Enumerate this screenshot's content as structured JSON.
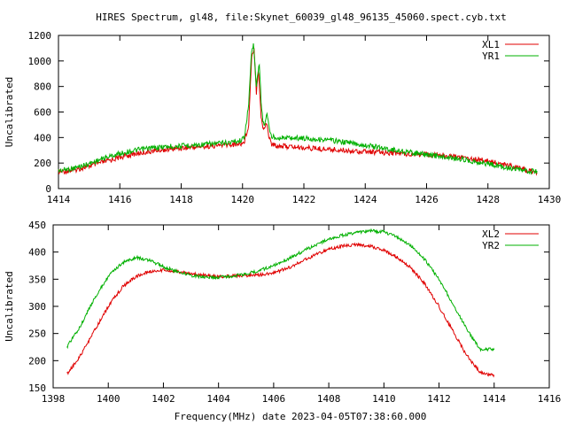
{
  "title": "HIRES Spectrum, gl48, file:Skynet_60039_gl48_96135_45060.spect.cyb.txt",
  "xlabel": "Frequency(MHz) date 2023-04-05T07:38:60.000",
  "colors": {
    "red": "#e00000",
    "green": "#00b000"
  },
  "chart_data": [
    {
      "type": "line",
      "ylabel": "Uncalibrated",
      "xlim": [
        1414,
        1430
      ],
      "ylim": [
        0,
        1200
      ],
      "xticks": [
        1414,
        1416,
        1418,
        1420,
        1422,
        1424,
        1426,
        1428,
        1430
      ],
      "yticks": [
        0,
        200,
        400,
        600,
        800,
        1000,
        1200
      ],
      "legend_position": "top-right",
      "grid": false,
      "series": [
        {
          "name": "XL1",
          "color": "#e00000",
          "points": [
            [
              1414.0,
              130
            ],
            [
              1414.5,
              145
            ],
            [
              1415.0,
              175
            ],
            [
              1415.5,
              210
            ],
            [
              1416.0,
              245
            ],
            [
              1416.5,
              272
            ],
            [
              1417.0,
              292
            ],
            [
              1417.5,
              307
            ],
            [
              1418.0,
              318
            ],
            [
              1418.5,
              327
            ],
            [
              1419.0,
              335
            ],
            [
              1419.5,
              342
            ],
            [
              1419.9,
              350
            ],
            [
              1420.05,
              360
            ],
            [
              1420.2,
              500
            ],
            [
              1420.3,
              1050
            ],
            [
              1420.38,
              1100
            ],
            [
              1420.45,
              750
            ],
            [
              1420.52,
              950
            ],
            [
              1420.6,
              580
            ],
            [
              1420.68,
              450
            ],
            [
              1420.78,
              520
            ],
            [
              1420.85,
              420
            ],
            [
              1420.95,
              345
            ],
            [
              1421.2,
              335
            ],
            [
              1422.0,
              320
            ],
            [
              1423.0,
              305
            ],
            [
              1424.0,
              290
            ],
            [
              1425.0,
              278
            ],
            [
              1426.0,
              265
            ],
            [
              1426.5,
              262
            ],
            [
              1427.0,
              250
            ],
            [
              1427.5,
              235
            ],
            [
              1428.0,
              215
            ],
            [
              1428.5,
              190
            ],
            [
              1429.0,
              160
            ],
            [
              1429.3,
              140
            ],
            [
              1429.6,
              130
            ]
          ]
        },
        {
          "name": "YR1",
          "color": "#00b000",
          "points": [
            [
              1414.0,
              140
            ],
            [
              1414.5,
              160
            ],
            [
              1415.0,
              195
            ],
            [
              1415.5,
              240
            ],
            [
              1416.0,
              275
            ],
            [
              1416.5,
              300
            ],
            [
              1417.0,
              318
            ],
            [
              1417.5,
              328
            ],
            [
              1418.0,
              335
            ],
            [
              1418.5,
              342
            ],
            [
              1419.0,
              350
            ],
            [
              1419.5,
              360
            ],
            [
              1419.9,
              375
            ],
            [
              1420.05,
              395
            ],
            [
              1420.2,
              650
            ],
            [
              1420.3,
              1100
            ],
            [
              1420.36,
              1130
            ],
            [
              1420.45,
              800
            ],
            [
              1420.55,
              980
            ],
            [
              1420.62,
              620
            ],
            [
              1420.7,
              480
            ],
            [
              1420.8,
              600
            ],
            [
              1420.88,
              450
            ],
            [
              1420.95,
              405
            ],
            [
              1421.2,
              400
            ],
            [
              1422.0,
              395
            ],
            [
              1423.0,
              375
            ],
            [
              1424.0,
              340
            ],
            [
              1425.0,
              300
            ],
            [
              1426.0,
              265
            ],
            [
              1426.5,
              250
            ],
            [
              1427.0,
              235
            ],
            [
              1427.5,
              215
            ],
            [
              1428.0,
              195
            ],
            [
              1428.5,
              170
            ],
            [
              1429.0,
              145
            ],
            [
              1429.3,
              135
            ],
            [
              1429.6,
              135
            ]
          ]
        }
      ]
    },
    {
      "type": "line",
      "ylabel": "Uncalibrated",
      "xlim": [
        1398,
        1416
      ],
      "ylim": [
        150,
        450
      ],
      "xticks": [
        1398,
        1400,
        1402,
        1404,
        1406,
        1408,
        1410,
        1412,
        1414,
        1416
      ],
      "yticks": [
        150,
        200,
        250,
        300,
        350,
        400,
        450
      ],
      "legend_position": "top-right",
      "grid": false,
      "series": [
        {
          "name": "XL2",
          "color": "#e00000",
          "points": [
            [
              1398.5,
              175
            ],
            [
              1399.0,
              210
            ],
            [
              1399.5,
              255
            ],
            [
              1400.0,
              300
            ],
            [
              1400.5,
              335
            ],
            [
              1401.0,
              355
            ],
            [
              1401.5,
              364
            ],
            [
              1402.0,
              367
            ],
            [
              1402.5,
              364
            ],
            [
              1403.0,
              360
            ],
            [
              1403.5,
              357
            ],
            [
              1404.0,
              355
            ],
            [
              1404.5,
              356
            ],
            [
              1405.0,
              357
            ],
            [
              1405.5,
              358
            ],
            [
              1406.0,
              362
            ],
            [
              1406.5,
              370
            ],
            [
              1407.0,
              382
            ],
            [
              1407.5,
              395
            ],
            [
              1408.0,
              405
            ],
            [
              1408.5,
              411
            ],
            [
              1409.0,
              413
            ],
            [
              1409.5,
              411
            ],
            [
              1410.0,
              404
            ],
            [
              1410.5,
              390
            ],
            [
              1411.0,
              370
            ],
            [
              1411.5,
              340
            ],
            [
              1412.0,
              300
            ],
            [
              1412.5,
              255
            ],
            [
              1413.0,
              210
            ],
            [
              1413.5,
              178
            ],
            [
              1414.0,
              172
            ]
          ]
        },
        {
          "name": "YR2",
          "color": "#00b000",
          "points": [
            [
              1398.5,
              225
            ],
            [
              1399.0,
              265
            ],
            [
              1399.5,
              315
            ],
            [
              1400.0,
              355
            ],
            [
              1400.5,
              380
            ],
            [
              1401.0,
              390
            ],
            [
              1401.5,
              385
            ],
            [
              1402.0,
              373
            ],
            [
              1402.5,
              364
            ],
            [
              1403.0,
              357
            ],
            [
              1403.5,
              354
            ],
            [
              1404.0,
              353
            ],
            [
              1404.5,
              356
            ],
            [
              1405.0,
              360
            ],
            [
              1405.5,
              366
            ],
            [
              1406.0,
              375
            ],
            [
              1406.5,
              387
            ],
            [
              1407.0,
              400
            ],
            [
              1407.5,
              413
            ],
            [
              1408.0,
              423
            ],
            [
              1408.5,
              431
            ],
            [
              1409.0,
              436
            ],
            [
              1409.5,
              439
            ],
            [
              1410.0,
              437
            ],
            [
              1410.5,
              428
            ],
            [
              1411.0,
              410
            ],
            [
              1411.5,
              385
            ],
            [
              1412.0,
              350
            ],
            [
              1412.5,
              305
            ],
            [
              1413.0,
              258
            ],
            [
              1413.5,
              220
            ],
            [
              1414.0,
              222
            ]
          ]
        }
      ]
    }
  ]
}
